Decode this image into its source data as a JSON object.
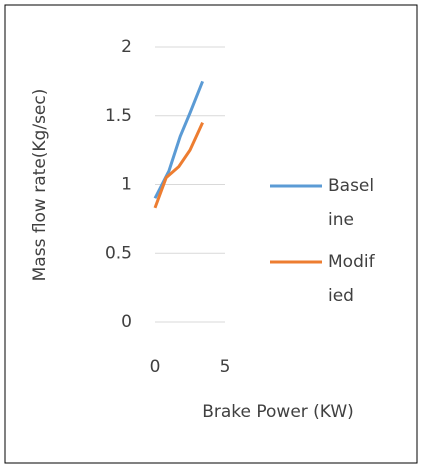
{
  "chart_data": {
    "type": "line",
    "x_label": "Brake Power (KW)",
    "y_label": "Mass flow rate(Kg/sec)",
    "xlim": [
      0,
      5
    ],
    "xticks": [
      0,
      5
    ],
    "ylim": [
      0,
      2
    ],
    "yticks": [
      0,
      0.5,
      1,
      1.5,
      2
    ],
    "grid": true,
    "legend": "right",
    "series": [
      {
        "name": "Baseline",
        "color": "#5b9bd5",
        "x": [
          0,
          1,
          1.8,
          2.5,
          3.4
        ],
        "values": [
          0.9,
          1.1,
          1.35,
          1.52,
          1.75
        ]
      },
      {
        "name": "Modified",
        "color": "#ed7d31",
        "x": [
          0,
          0.8,
          1.7,
          2.5,
          3.4
        ],
        "values": [
          0.83,
          1.05,
          1.13,
          1.25,
          1.45
        ]
      }
    ]
  }
}
